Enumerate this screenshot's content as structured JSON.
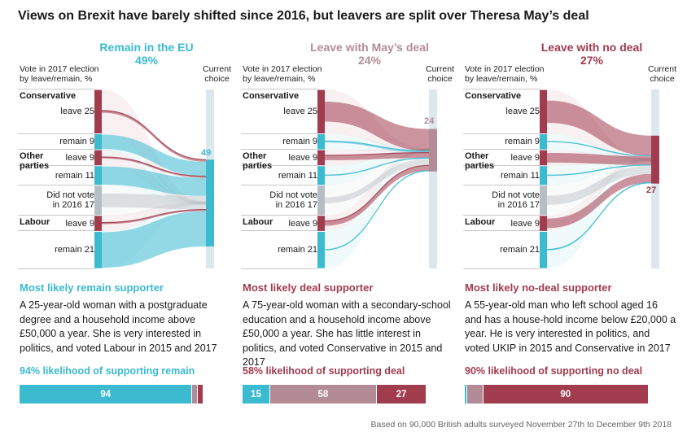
{
  "title": "Views on Brexit have barely shifted since 2016, but leavers are split over Theresa May’s deal",
  "colors": {
    "remain": "#3bbad0",
    "leave": "#a13c4f",
    "deal": "#b38b96",
    "dnv": "#b7bec3",
    "bar": "#dde8ee"
  },
  "footnote": "Based on 90,000 British adults surveyed November 27th to December 9th 2018",
  "axis": {
    "left_header": "Vote in 2017 election\nby leave/remain, %",
    "right_header": "Current\nchoice"
  },
  "groups": [
    {
      "label": "Conservative",
      "rows": [
        0
      ]
    },
    {
      "label": "Other\nparties",
      "rows": [
        2,
        3
      ]
    },
    {
      "label": "Labour",
      "rows": [
        5
      ]
    }
  ],
  "chart_data": [
    {
      "type": "sankey",
      "title": "Remain in the EU",
      "percent": "49%",
      "color": "remain",
      "rows": [
        {
          "label": "leave 25",
          "value": 25,
          "type": "leave",
          "flow": 0.05
        },
        {
          "label": "remain 9",
          "value": 9,
          "type": "remain",
          "flow": 0.9
        },
        {
          "label": "leave 9",
          "value": 9,
          "type": "leave",
          "flow": 0.1
        },
        {
          "label": "remain 11",
          "value": 11,
          "type": "remain",
          "flow": 0.93
        },
        {
          "label": "Did not vote\nin 2016 17",
          "value": 17,
          "type": "dnv",
          "flow": 0.45
        },
        {
          "label": "leave 9",
          "value": 9,
          "type": "leave",
          "flow": 0.1
        },
        {
          "label": "remain 21",
          "value": 21,
          "type": "remain",
          "flow": 0.95
        }
      ],
      "target": {
        "value": 49,
        "label": "49"
      },
      "supporter": {
        "title": "Most likely remain supporter",
        "text": "A 25-year-old woman with a postgraduate degree and a household income above £50,000 a year. She is very interested in politics, and voted Labour in 2015 and 2017"
      },
      "likelihood": {
        "label": "94% likelihood of supporting remain",
        "label_color": "remain",
        "segments": [
          {
            "value": 94,
            "color": "remain",
            "label": "94"
          },
          {
            "value": 3,
            "color": "deal",
            "label": ""
          },
          {
            "value": 3,
            "color": "leave",
            "label": ""
          }
        ]
      }
    },
    {
      "type": "sankey",
      "title": "Leave with May’s deal",
      "percent": "24%",
      "color": "deal",
      "rows": [
        {
          "label": "leave 25",
          "value": 25,
          "type": "leave",
          "flow": 0.45
        },
        {
          "label": "remain 9",
          "value": 9,
          "type": "remain",
          "flow": 0.1
        },
        {
          "label": "leave 9",
          "value": 9,
          "type": "leave",
          "flow": 0.3
        },
        {
          "label": "remain 11",
          "value": 11,
          "type": "remain",
          "flow": 0.04
        },
        {
          "label": "Did not vote\nin 2016 17",
          "value": 17,
          "type": "dnv",
          "flow": 0.2
        },
        {
          "label": "leave 9",
          "value": 9,
          "type": "leave",
          "flow": 0.3
        },
        {
          "label": "remain 21",
          "value": 21,
          "type": "remain",
          "flow": 0.02
        }
      ],
      "target": {
        "value": 24,
        "label": "24"
      },
      "supporter": {
        "title": "Most likely deal supporter",
        "text": "A 75-year-old woman with a secondary-school education and a household income above £50,000 a year. She has little interest in politics, and voted Conservative in 2015 and 2017"
      },
      "likelihood": {
        "label": "58% likelihood of supporting deal",
        "label_color": "leave",
        "segments": [
          {
            "value": 15,
            "color": "remain",
            "label": "15"
          },
          {
            "value": 58,
            "color": "deal",
            "label": "58"
          },
          {
            "value": 27,
            "color": "leave",
            "label": "27"
          }
        ]
      }
    },
    {
      "type": "sankey",
      "title": "Leave with no deal",
      "percent": "27%",
      "color": "leave",
      "rows": [
        {
          "label": "leave 25",
          "value": 25,
          "type": "leave",
          "flow": 0.5
        },
        {
          "label": "remain 9",
          "value": 9,
          "type": "remain",
          "flow": 0.04
        },
        {
          "label": "leave 9",
          "value": 9,
          "type": "leave",
          "flow": 0.6
        },
        {
          "label": "remain 11",
          "value": 11,
          "type": "remain",
          "flow": 0.04
        },
        {
          "label": "Did not vote\nin 2016 17",
          "value": 17,
          "type": "dnv",
          "flow": 0.3
        },
        {
          "label": "leave 9",
          "value": 9,
          "type": "leave",
          "flow": 0.6
        },
        {
          "label": "remain 21",
          "value": 21,
          "type": "remain",
          "flow": 0.03
        }
      ],
      "target": {
        "value": 27,
        "label": "27"
      },
      "supporter": {
        "title": "Most likely no-deal supporter",
        "text": "A 55-year-old man who left school aged 16 and has a house-hold income below £20,000 a year. He is very interested in politics, and voted UKIP in 2015 and Conservative in 2017"
      },
      "likelihood": {
        "label": "90% likelihood of supporting no deal",
        "label_color": "leave",
        "segments": [
          {
            "value": 1.5,
            "color": "remain",
            "label": ""
          },
          {
            "value": 8.5,
            "color": "deal",
            "label": ""
          },
          {
            "value": 90,
            "color": "leave",
            "label": "90"
          }
        ]
      }
    }
  ]
}
